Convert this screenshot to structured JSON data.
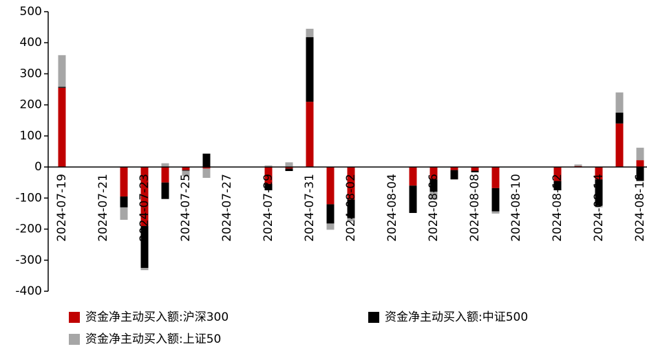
{
  "chart_data": {
    "type": "stacked_bar",
    "categories": [
      "2024-07-19",
      null,
      "2024-07-21",
      null,
      "2024-07-23",
      null,
      "2024-07-25",
      null,
      "2024-07-27",
      null,
      "2024-07-29",
      null,
      "2024-07-31",
      null,
      "2024-08-02",
      null,
      "2024-08-04",
      null,
      "2024-08-06",
      null,
      "2024-08-08",
      null,
      "2024-08-10",
      null,
      "2024-08-12",
      null,
      "2024-08-14",
      null,
      "2024-08-16"
    ],
    "series": [
      {
        "name": "资金净主动买入额:沪深300",
        "color": "#c00000",
        "values": [
          255,
          null,
          null,
          -95,
          -190,
          -50,
          -10,
          -5,
          null,
          null,
          -55,
          -5,
          210,
          -120,
          -105,
          null,
          null,
          -60,
          -40,
          -10,
          -12,
          -68,
          null,
          null,
          -45,
          3,
          -40,
          140,
          22
        ]
      },
      {
        "name": "资金净主动买入额:中证500",
        "color": "#000000",
        "values": [
          3,
          null,
          null,
          -35,
          -135,
          -53,
          -2,
          43,
          null,
          null,
          -20,
          -8,
          208,
          -62,
          -60,
          null,
          null,
          -88,
          -40,
          -30,
          -5,
          -75,
          null,
          null,
          -30,
          0,
          -85,
          35,
          -45
        ]
      },
      {
        "name": "资金净主动买入额:上证50",
        "color": "#a6a6a6",
        "values": [
          102,
          null,
          null,
          -40,
          -7,
          12,
          -18,
          -30,
          null,
          null,
          5,
          15,
          27,
          -20,
          -10,
          null,
          null,
          0,
          -25,
          0,
          0,
          -7,
          null,
          null,
          0,
          5,
          -5,
          65,
          40
        ]
      }
    ],
    "ylim": [
      -400,
      500
    ],
    "yticks": [
      -400,
      -300,
      -200,
      -100,
      0,
      100,
      200,
      300,
      400,
      500
    ]
  }
}
